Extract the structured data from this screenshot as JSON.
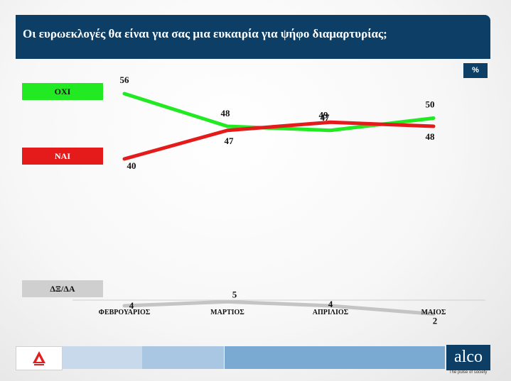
{
  "header": {
    "title": "Οι ευρωεκλογές θα είναι για σας μια ευκαιρία για ψήφο διαμαρτυρίας;"
  },
  "unit_badge": "%",
  "legend": {
    "oxi": "ΟΧΙ",
    "nai": "ΝΑΙ",
    "dk": "ΔΞ/ΔΑ"
  },
  "colors": {
    "oxi": "#22ea22",
    "nai": "#e51b1b",
    "dk": "#c4c4c4",
    "header": "#0d3f66"
  },
  "chart_data": {
    "type": "line",
    "title": "Οι ευρωεκλογές θα είναι για σας μια ευκαιρία για ψήφο διαμαρτυρίας;",
    "unit": "%",
    "categories": [
      "ΦΕΒΡΟΥΑΡΙΟΣ",
      "ΜΑΡΤΙΟΣ",
      "ΑΠΡΙΛΙΟΣ",
      "ΜΑΙΟΣ"
    ],
    "series": [
      {
        "name": "ΟΧΙ",
        "values": [
          56,
          48,
          47,
          50
        ],
        "color": "#22ea22"
      },
      {
        "name": "ΝΑΙ",
        "values": [
          40,
          47,
          49,
          48
        ],
        "color": "#e51b1b"
      },
      {
        "name": "ΔΞ/ΔΑ",
        "values": [
          4,
          5,
          4,
          2
        ],
        "color": "#c4c4c4"
      }
    ],
    "grid": false,
    "legend": "left"
  },
  "footer": {
    "logo": "alco",
    "tagline": "The pulse of society",
    "news_icon": "news-channel-logo-icon"
  }
}
